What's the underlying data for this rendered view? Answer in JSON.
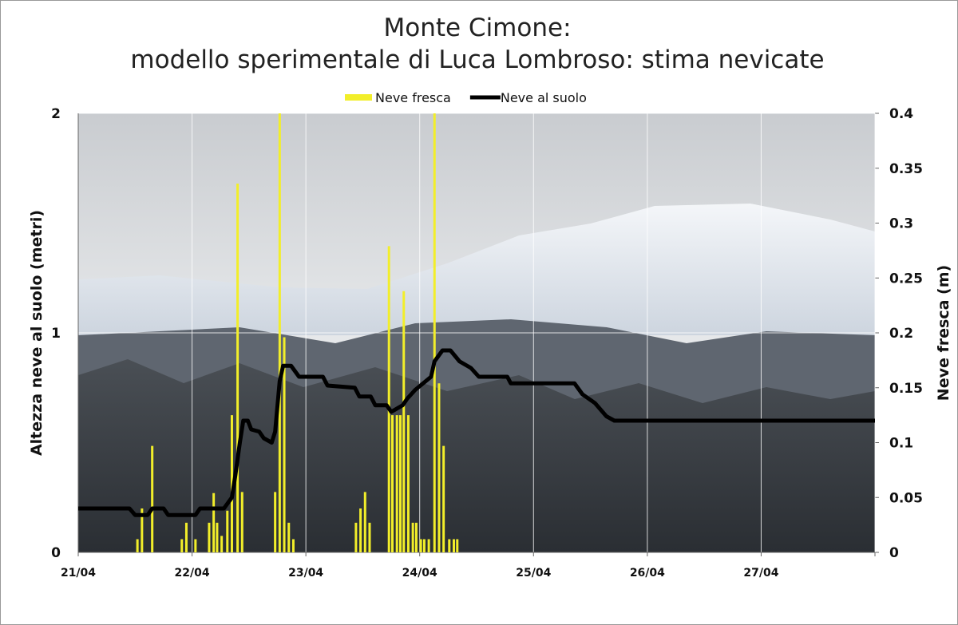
{
  "chart_data": {
    "type": "bar-line",
    "title": "Monte Cimone:",
    "subtitle": "modello sperimentale di Luca Lombroso: stima nevicate",
    "y_label": "Altezza neve al suolo (metri)",
    "y2_label": "Neve fresca (m)",
    "xlim": [
      0,
      7
    ],
    "xticks": [
      {
        "value": 0,
        "label": "21/04"
      },
      {
        "value": 1,
        "label": "22/04"
      },
      {
        "value": 2,
        "label": "23/04"
      },
      {
        "value": 3,
        "label": "24/04"
      },
      {
        "value": 4,
        "label": "25/04"
      },
      {
        "value": 5,
        "label": "26/04"
      },
      {
        "value": 6,
        "label": "27/04"
      },
      {
        "value": 7,
        "label": null
      }
    ],
    "ylim": [
      0,
      2
    ],
    "yticks": [
      0,
      1,
      2
    ],
    "y2lim": [
      0,
      0.4
    ],
    "y2ticks": [
      0,
      0.05,
      0.1,
      0.15,
      0.2,
      0.25,
      0.3,
      0.35,
      0.4
    ],
    "grid": true,
    "legend": "top",
    "series": [
      {
        "name": "Neve fresca",
        "type": "bar",
        "axis": "y2",
        "color": "#f2ee2a",
        "x": [
          0.52,
          0.56,
          0.65,
          0.91,
          0.95,
          1.03,
          1.15,
          1.19,
          1.22,
          1.26,
          1.31,
          1.35,
          1.4,
          1.44,
          1.73,
          1.77,
          1.81,
          1.85,
          1.89,
          2.44,
          2.48,
          2.52,
          2.56,
          2.73,
          2.76,
          2.8,
          2.83,
          2.86,
          2.9,
          2.94,
          2.97,
          3.01,
          3.04,
          3.08,
          3.13,
          3.17,
          3.21,
          3.26,
          3.3,
          3.33
        ],
        "values": [
          0.012,
          0.04,
          0.097,
          0.012,
          0.027,
          0.012,
          0.027,
          0.054,
          0.027,
          0.015,
          0.038,
          0.125,
          0.336,
          0.055,
          0.055,
          0.4,
          0.196,
          0.027,
          0.012,
          0.027,
          0.04,
          0.055,
          0.027,
          0.279,
          0.125,
          0.125,
          0.125,
          0.238,
          0.125,
          0.027,
          0.027,
          0.012,
          0.012,
          0.012,
          0.4,
          0.154,
          0.097,
          0.012,
          0.012,
          0.012
        ]
      },
      {
        "name": "Neve al suolo",
        "type": "line",
        "color": "#000000",
        "x": [
          0,
          0.45,
          0.5,
          0.61,
          0.65,
          0.75,
          0.79,
          1.03,
          1.07,
          1.28,
          1.35,
          1.38,
          1.42,
          1.45,
          1.49,
          1.52,
          1.59,
          1.63,
          1.7,
          1.73,
          1.77,
          1.8,
          1.87,
          1.94,
          2.15,
          2.19,
          2.43,
          2.47,
          2.57,
          2.61,
          2.71,
          2.75,
          2.85,
          2.89,
          2.96,
          3.1,
          3.13,
          3.2,
          3.27,
          3.35,
          3.45,
          3.52,
          3.77,
          3.8,
          4.36,
          4.43,
          4.54,
          4.64,
          4.71,
          7.0
        ],
        "values": [
          0.2,
          0.2,
          0.17,
          0.17,
          0.2,
          0.2,
          0.17,
          0.17,
          0.2,
          0.2,
          0.25,
          0.35,
          0.5,
          0.6,
          0.6,
          0.56,
          0.55,
          0.52,
          0.5,
          0.55,
          0.78,
          0.85,
          0.85,
          0.8,
          0.8,
          0.76,
          0.75,
          0.71,
          0.71,
          0.67,
          0.67,
          0.64,
          0.67,
          0.7,
          0.74,
          0.8,
          0.87,
          0.92,
          0.92,
          0.87,
          0.84,
          0.8,
          0.8,
          0.77,
          0.77,
          0.72,
          0.68,
          0.62,
          0.6,
          0.6
        ]
      }
    ]
  }
}
